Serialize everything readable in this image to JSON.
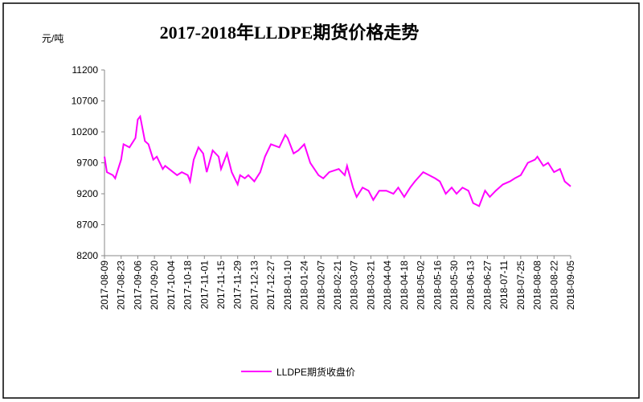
{
  "chart_data": {
    "type": "line",
    "title": "2017-2018年LLDPE期货价格走势",
    "y_unit": "元/吨",
    "x": [
      "2017-08-09",
      "2017-08-11",
      "2017-08-16",
      "2017-08-18",
      "2017-08-23",
      "2017-08-25",
      "2017-08-30",
      "2017-09-04",
      "2017-09-06",
      "2017-09-08",
      "2017-09-12",
      "2017-09-15",
      "2017-09-19",
      "2017-09-22",
      "2017-09-27",
      "2017-09-29",
      "2017-10-09",
      "2017-10-13",
      "2017-10-18",
      "2017-10-20",
      "2017-10-23",
      "2017-10-27",
      "2017-10-31",
      "2017-11-03",
      "2017-11-08",
      "2017-11-13",
      "2017-11-15",
      "2017-11-20",
      "2017-11-24",
      "2017-11-29",
      "2017-12-01",
      "2017-12-05",
      "2017-12-08",
      "2017-12-13",
      "2017-12-18",
      "2017-12-22",
      "2017-12-27",
      "2018-01-03",
      "2018-01-08",
      "2018-01-10",
      "2018-01-15",
      "2018-01-19",
      "2018-01-24",
      "2018-01-29",
      "2018-02-05",
      "2018-02-09",
      "2018-02-14",
      "2018-02-22",
      "2018-02-27",
      "2018-03-01",
      "2018-03-06",
      "2018-03-09",
      "2018-03-14",
      "2018-03-19",
      "2018-03-23",
      "2018-03-28",
      "2018-04-03",
      "2018-04-09",
      "2018-04-13",
      "2018-04-18",
      "2018-04-23",
      "2018-04-27",
      "2018-05-04",
      "2018-05-09",
      "2018-05-14",
      "2018-05-18",
      "2018-05-23",
      "2018-05-28",
      "2018-06-01",
      "2018-06-06",
      "2018-06-11",
      "2018-06-15",
      "2018-06-20",
      "2018-06-25",
      "2018-06-29",
      "2018-07-04",
      "2018-07-10",
      "2018-07-16",
      "2018-07-20",
      "2018-07-25",
      "2018-07-31",
      "2018-08-06",
      "2018-08-08",
      "2018-08-13",
      "2018-08-17",
      "2018-08-22",
      "2018-08-27",
      "2018-08-31",
      "2018-09-05"
    ],
    "series": [
      {
        "name": "LLDPE期货收盘价",
        "color": "#ff00ff",
        "values": [
          9800,
          9550,
          9500,
          9450,
          9750,
          10000,
          9950,
          10100,
          10400,
          10450,
          10050,
          10000,
          9750,
          9800,
          9600,
          9650,
          9500,
          9550,
          9500,
          9400,
          9750,
          9950,
          9850,
          9550,
          9900,
          9800,
          9600,
          9850,
          9550,
          9350,
          9500,
          9450,
          9500,
          9400,
          9550,
          9800,
          10000,
          9950,
          10150,
          10100,
          9850,
          9900,
          10000,
          9700,
          9500,
          9450,
          9550,
          9600,
          9500,
          9650,
          9300,
          9150,
          9300,
          9250,
          9100,
          9250,
          9250,
          9200,
          9300,
          9150,
          9300,
          9400,
          9550,
          9500,
          9450,
          9400,
          9200,
          9300,
          9200,
          9300,
          9250,
          9050,
          9000,
          9250,
          9150,
          9250,
          9350,
          9400,
          9450,
          9500,
          9700,
          9750,
          9800,
          9650,
          9700,
          9550,
          9600,
          9400,
          9320
        ]
      }
    ],
    "xlim": [
      "2017-08-09",
      "2018-09-05"
    ],
    "xticks": [
      "2017-08-09",
      "2017-08-23",
      "2017-09-06",
      "2017-09-20",
      "2017-10-04",
      "2017-10-18",
      "2017-11-01",
      "2017-11-15",
      "2017-11-29",
      "2017-12-13",
      "2017-12-27",
      "2018-01-10",
      "2018-01-24",
      "2018-02-07",
      "2018-02-21",
      "2018-03-07",
      "2018-03-21",
      "2018-04-04",
      "2018-04-18",
      "2018-05-02",
      "2018-05-16",
      "2018-05-30",
      "2018-06-13",
      "2018-06-27",
      "2018-07-11",
      "2018-07-25",
      "2018-08-08",
      "2018-08-22",
      "2018-09-05"
    ],
    "ylim": [
      8200,
      11200
    ],
    "yticks": [
      8200,
      8700,
      9200,
      9700,
      10200,
      10700,
      11200
    ],
    "grid": false
  }
}
